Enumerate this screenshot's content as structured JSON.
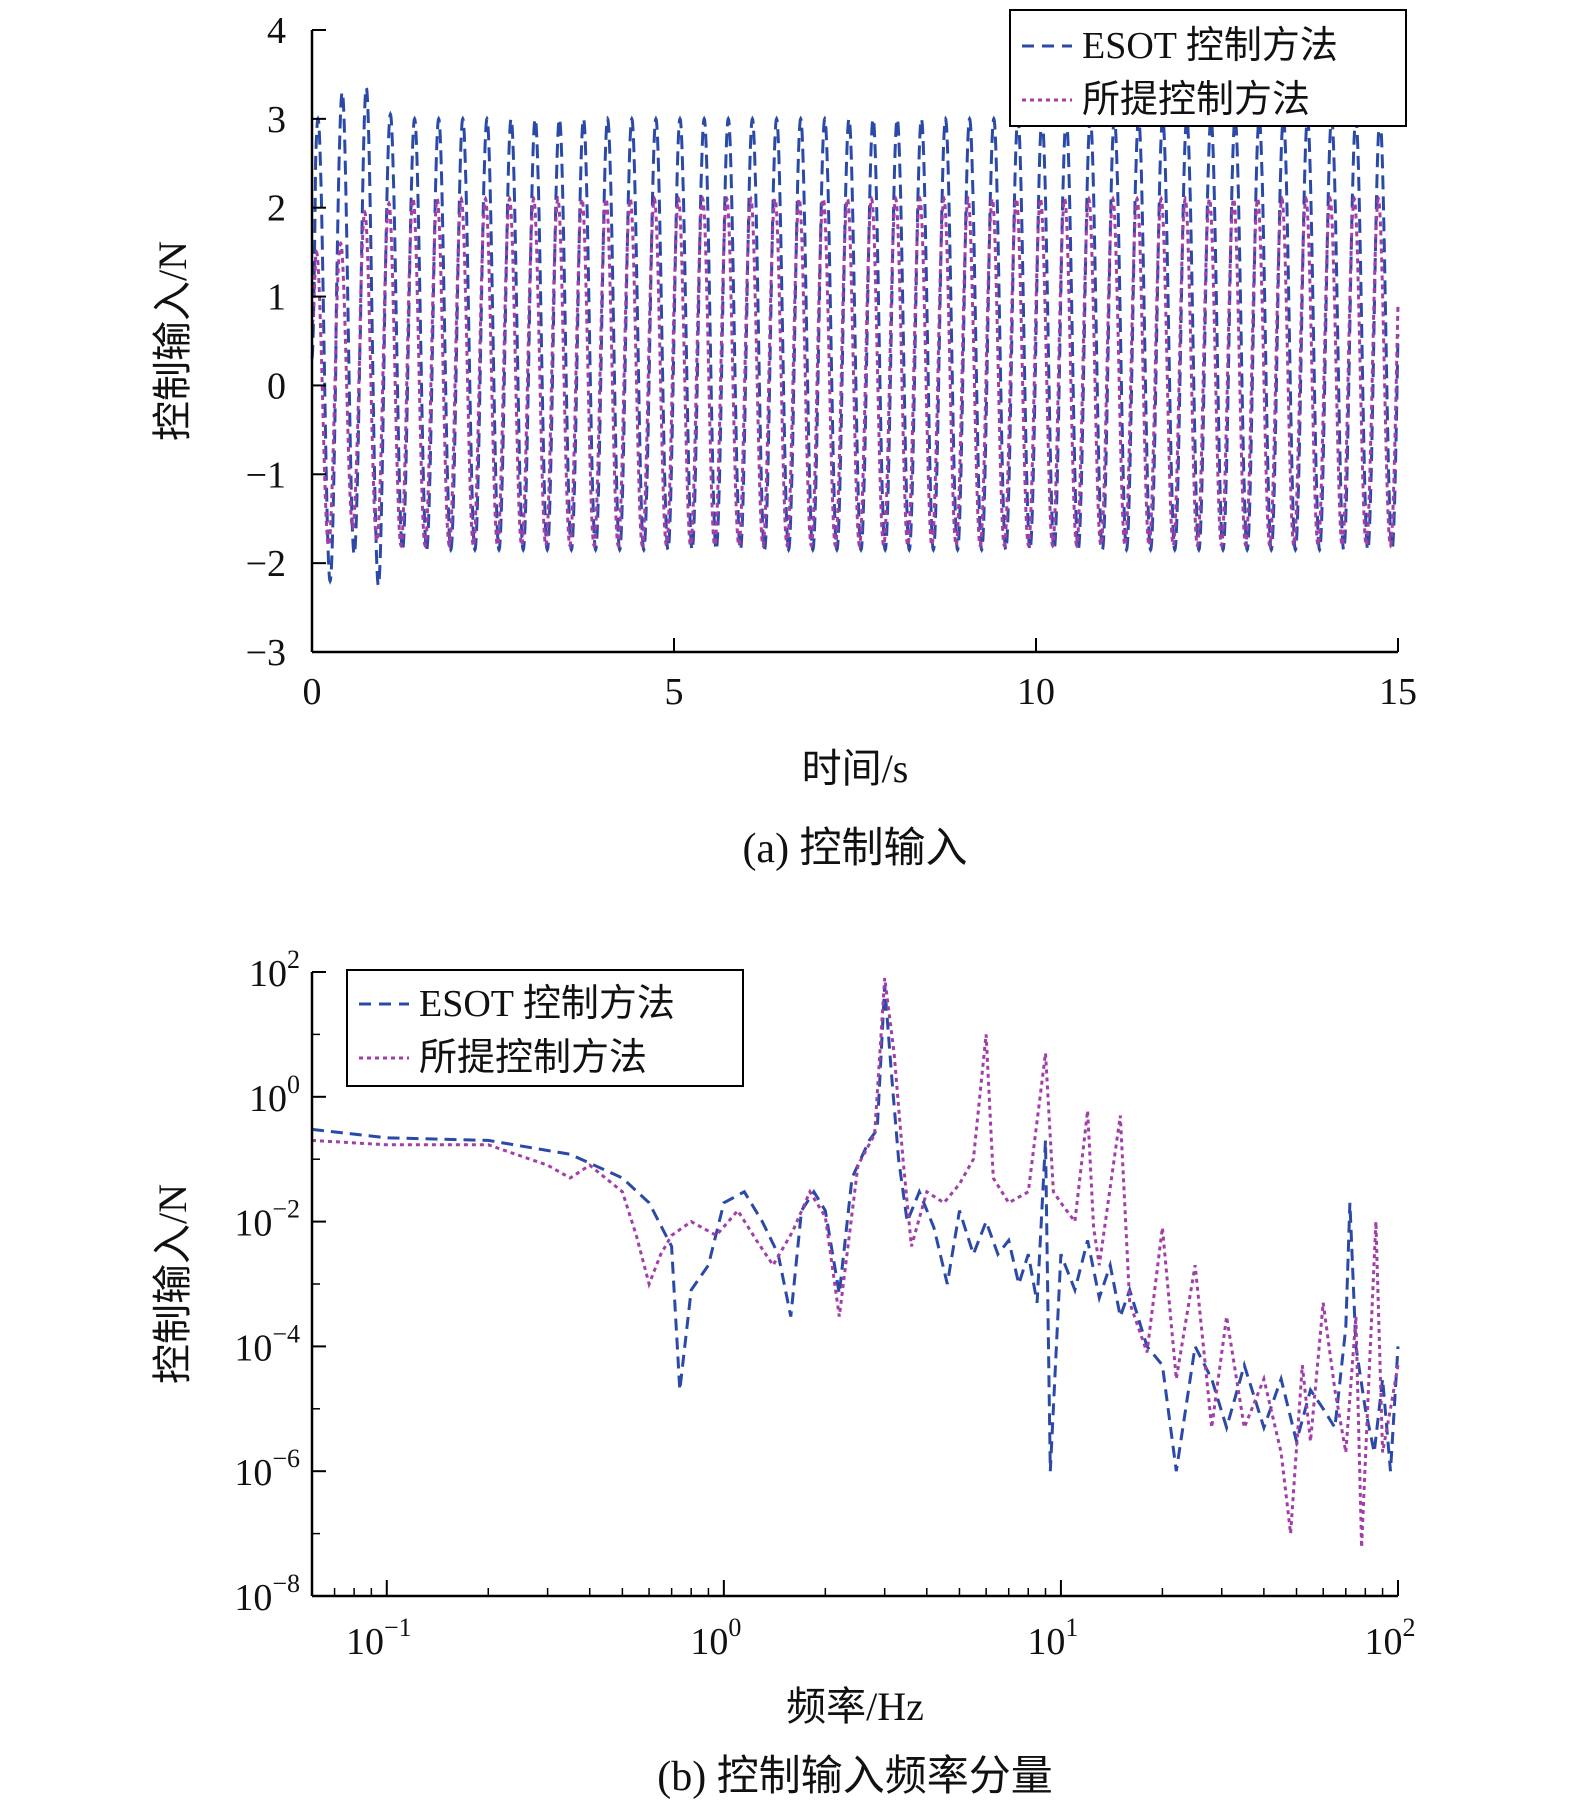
{
  "chart_data": [
    {
      "type": "line",
      "title": "",
      "caption": "(a) 控制输入",
      "xlabel": "时间/s",
      "ylabel": "控制输入/N",
      "xlim": [
        0,
        15
      ],
      "ylim": [
        -3,
        4
      ],
      "xticks": [
        0,
        5,
        10,
        15
      ],
      "xtick_labels": [
        "0",
        "5",
        "10",
        "15"
      ],
      "yticks": [
        -3,
        -2,
        -1,
        0,
        1,
        2,
        3,
        4
      ],
      "ytick_labels": [
        "−3",
        "−2",
        "−1",
        "0",
        "1",
        "2",
        "3",
        "4"
      ],
      "grid": false,
      "legend_position": "top-right",
      "oscillation_frequency_hz": 3,
      "series": [
        {
          "name": "ESOT 控制方法",
          "color": "#2b4aa8",
          "style": "dashed",
          "peak": 3.0,
          "trough": -1.85,
          "start": 0.3,
          "initial_peaks": [
            3.0,
            3.3,
            3.35,
            3.05
          ],
          "initial_troughs": [
            -2.2,
            -1.9,
            -2.25,
            -1.85
          ]
        },
        {
          "name": "所提控制方法",
          "color": "#a23ea8",
          "style": "dotted",
          "peak": 2.1,
          "trough": -1.8,
          "start": 0.7,
          "initial_peaks": [
            1.5,
            1.6,
            1.95,
            2.05
          ],
          "initial_troughs": [
            -1.8,
            -1.6,
            -1.75,
            -1.8
          ]
        }
      ]
    },
    {
      "type": "line",
      "scale": "log-log",
      "title": "",
      "caption": "(b) 控制输入频率分量",
      "xlabel": "频率/Hz",
      "ylabel": "控制输入/N",
      "xlim": [
        0.06,
        100
      ],
      "ylim": [
        1e-08,
        100
      ],
      "xtick_values": [
        0.1,
        1,
        10,
        100
      ],
      "xtick_base": "10",
      "xtick_exps": [
        "−1",
        "0",
        "1",
        "2"
      ],
      "ytick_values": [
        100,
        1,
        0.01,
        0.0001,
        1e-06,
        1e-08
      ],
      "ytick_base": "10",
      "ytick_exps": [
        "2",
        "0",
        "−2",
        "−4",
        "−6",
        "−8"
      ],
      "grid": false,
      "legend_position": "top-left",
      "series": [
        {
          "name": "ESOT 控制方法",
          "color": "#2b4aa8",
          "style": "dashed",
          "points": [
            [
              0.06,
              0.3
            ],
            [
              0.1,
              0.22
            ],
            [
              0.2,
              0.2
            ],
            [
              0.35,
              0.12
            ],
            [
              0.5,
              0.05
            ],
            [
              0.6,
              0.02
            ],
            [
              0.7,
              0.004
            ],
            [
              0.74,
              2e-05
            ],
            [
              0.8,
              0.0008
            ],
            [
              0.9,
              0.002
            ],
            [
              1.0,
              0.02
            ],
            [
              1.15,
              0.03
            ],
            [
              1.3,
              0.01
            ],
            [
              1.45,
              0.003
            ],
            [
              1.58,
              0.0003
            ],
            [
              1.7,
              0.015
            ],
            [
              1.85,
              0.03
            ],
            [
              2.0,
              0.015
            ],
            [
              2.2,
              0.0007
            ],
            [
              2.4,
              0.05
            ],
            [
              2.7,
              0.2
            ],
            [
              2.85,
              0.3
            ],
            [
              3.0,
              60
            ],
            [
              3.15,
              2
            ],
            [
              3.3,
              0.1
            ],
            [
              3.5,
              0.01
            ],
            [
              3.8,
              0.03
            ],
            [
              4.2,
              0.008
            ],
            [
              4.6,
              0.001
            ],
            [
              5.0,
              0.015
            ],
            [
              5.5,
              0.003
            ],
            [
              6.0,
              0.01
            ],
            [
              6.5,
              0.003
            ],
            [
              7.0,
              0.005
            ],
            [
              7.5,
              0.001
            ],
            [
              8.0,
              0.003
            ],
            [
              8.5,
              0.0005
            ],
            [
              9.0,
              0.2
            ],
            [
              9.3,
              1e-06
            ],
            [
              10,
              0.003
            ],
            [
              11,
              0.0008
            ],
            [
              12,
              0.005
            ],
            [
              13,
              0.0006
            ],
            [
              14,
              0.002
            ],
            [
              15,
              0.0003
            ],
            [
              16,
              0.0008
            ],
            [
              18,
              0.0001
            ],
            [
              20,
              5e-05
            ],
            [
              22,
              1e-06
            ],
            [
              25,
              0.0001
            ],
            [
              28,
              3e-05
            ],
            [
              31,
              5e-06
            ],
            [
              35,
              5e-05
            ],
            [
              40,
              5e-06
            ],
            [
              45,
              3e-05
            ],
            [
              50,
              3e-06
            ],
            [
              55,
              2e-05
            ],
            [
              60,
              1e-05
            ],
            [
              65,
              5e-06
            ],
            [
              70,
              0.0002
            ],
            [
              72,
              0.02
            ],
            [
              75,
              0.0001
            ],
            [
              80,
              1e-05
            ],
            [
              85,
              2e-06
            ],
            [
              90,
              3e-05
            ],
            [
              95,
              1e-06
            ],
            [
              100,
              0.0001
            ]
          ]
        },
        {
          "name": "所提控制方法",
          "color": "#a23ea8",
          "style": "dotted",
          "points": [
            [
              0.06,
              0.2
            ],
            [
              0.1,
              0.17
            ],
            [
              0.2,
              0.17
            ],
            [
              0.3,
              0.08
            ],
            [
              0.35,
              0.05
            ],
            [
              0.4,
              0.08
            ],
            [
              0.5,
              0.03
            ],
            [
              0.55,
              0.006
            ],
            [
              0.6,
              0.001
            ],
            [
              0.65,
              0.003
            ],
            [
              0.7,
              0.006
            ],
            [
              0.8,
              0.01
            ],
            [
              0.95,
              0.006
            ],
            [
              1.1,
              0.015
            ],
            [
              1.25,
              0.005
            ],
            [
              1.4,
              0.002
            ],
            [
              1.6,
              0.007
            ],
            [
              1.8,
              0.03
            ],
            [
              2.0,
              0.012
            ],
            [
              2.2,
              0.0003
            ],
            [
              2.5,
              0.08
            ],
            [
              2.8,
              0.25
            ],
            [
              3.0,
              80
            ],
            [
              3.2,
              5
            ],
            [
              3.4,
              0.1
            ],
            [
              3.6,
              0.004
            ],
            [
              4.0,
              0.03
            ],
            [
              4.5,
              0.02
            ],
            [
              5.0,
              0.04
            ],
            [
              5.5,
              0.1
            ],
            [
              6.0,
              10
            ],
            [
              6.3,
              0.05
            ],
            [
              7.0,
              0.02
            ],
            [
              8.0,
              0.03
            ],
            [
              9.0,
              5
            ],
            [
              9.5,
              0.03
            ],
            [
              10,
              0.02
            ],
            [
              11,
              0.01
            ],
            [
              12,
              0.6
            ],
            [
              12.5,
              0.008
            ],
            [
              13,
              0.002
            ],
            [
              15,
              0.5
            ],
            [
              16,
              0.0005
            ],
            [
              18,
              8e-05
            ],
            [
              20,
              0.008
            ],
            [
              22,
              3e-05
            ],
            [
              25,
              0.002
            ],
            [
              28,
              5e-06
            ],
            [
              31,
              0.0003
            ],
            [
              35,
              5e-06
            ],
            [
              40,
              3e-05
            ],
            [
              45,
              2e-06
            ],
            [
              48,
              1e-07
            ],
            [
              52,
              5e-05
            ],
            [
              55,
              3e-06
            ],
            [
              60,
              0.0005
            ],
            [
              65,
              2e-05
            ],
            [
              70,
              2e-06
            ],
            [
              75,
              0.0003
            ],
            [
              78,
              6e-08
            ],
            [
              82,
              3e-05
            ],
            [
              86,
              0.01
            ],
            [
              90,
              2e-06
            ],
            [
              95,
              1e-05
            ],
            [
              100,
              5e-05
            ]
          ]
        }
      ]
    }
  ]
}
